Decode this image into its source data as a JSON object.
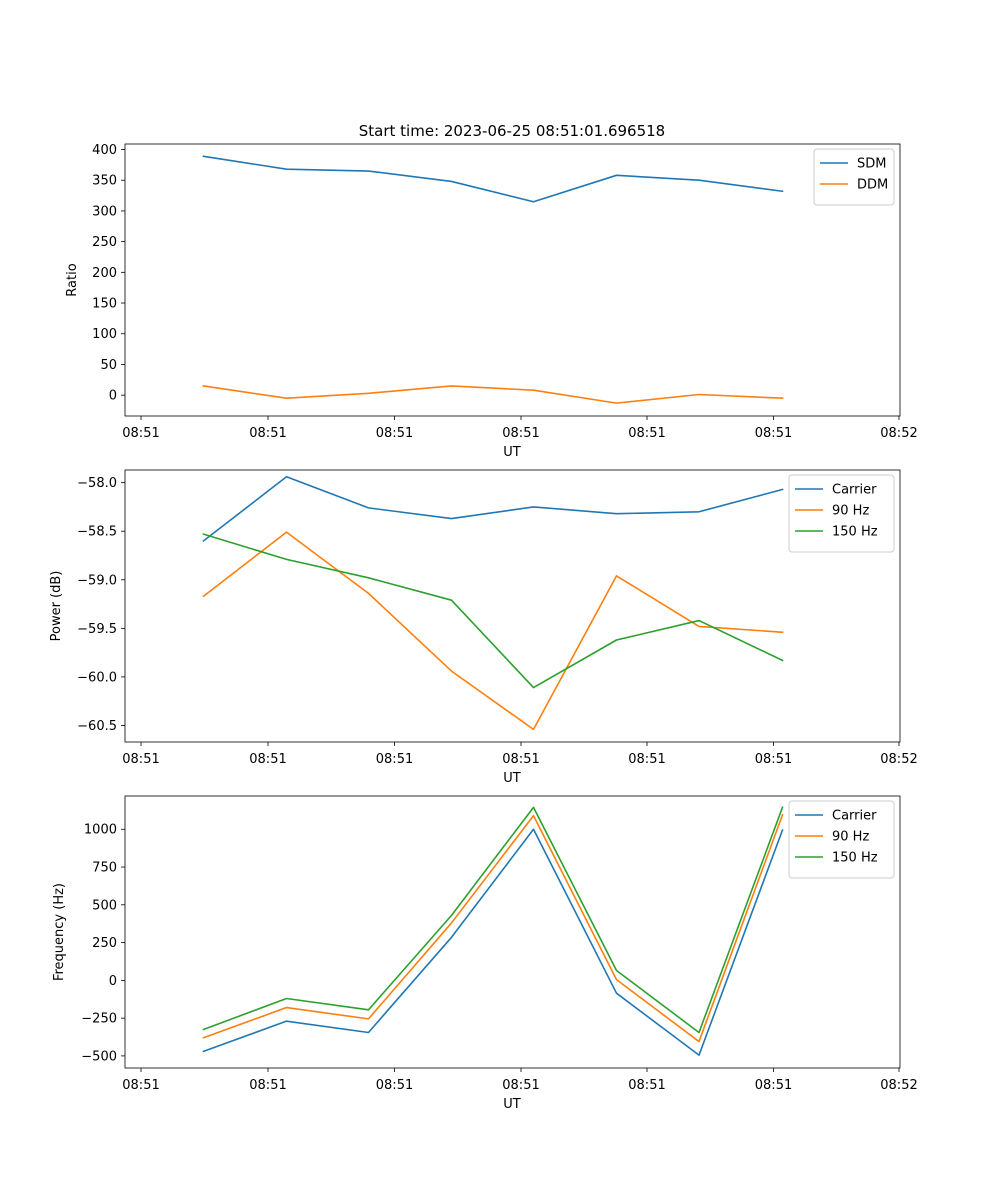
{
  "figure": {
    "title": "Start time: 2023-06-25 08:51:01.696518"
  },
  "chart_data": [
    {
      "type": "line",
      "xlabel": "UT",
      "ylabel": "Ratio",
      "x_tick_labels": [
        "08:51",
        "08:51",
        "08:51",
        "08:51",
        "08:51",
        "08:51",
        "08:51"
      ],
      "x_last_tick_label": "08:52",
      "y_ticks": [
        0,
        50,
        100,
        150,
        200,
        250,
        300,
        350,
        400
      ],
      "ylim": [
        -34,
        409
      ],
      "legend_position": "upper right",
      "series": [
        {
          "name": "SDM",
          "color": "#1f77b4",
          "values": [
            389,
            368,
            365,
            348,
            315,
            358,
            350,
            332
          ]
        },
        {
          "name": "DDM",
          "color": "#ff7f0e",
          "values": [
            15,
            -5,
            3,
            15,
            8,
            -13,
            1,
            -5
          ]
        }
      ]
    },
    {
      "type": "line",
      "xlabel": "UT",
      "ylabel": "Power (dB)",
      "x_tick_labels": [
        "08:51",
        "08:51",
        "08:51",
        "08:51",
        "08:51",
        "08:51",
        "08:51"
      ],
      "x_last_tick_label": "08:52",
      "y_ticks": [
        -60.5,
        -60.0,
        -59.5,
        -59.0,
        -58.5,
        -58.0
      ],
      "y_tick_labels": [
        "−60.5",
        "−60.0",
        "−59.5",
        "−59.0",
        "−58.5",
        "−58.0"
      ],
      "ylim": [
        -60.67,
        -57.87
      ],
      "legend_position": "upper right",
      "series": [
        {
          "name": "Carrier",
          "color": "#1f77b4",
          "values": [
            -58.6,
            -57.94,
            -58.26,
            -58.37,
            -58.25,
            -58.32,
            -58.3,
            -58.07
          ]
        },
        {
          "name": "90 Hz",
          "color": "#ff7f0e",
          "values": [
            -59.17,
            -58.51,
            -59.14,
            -59.94,
            -60.54,
            -58.96,
            -59.48,
            -59.54
          ]
        },
        {
          "name": "150 Hz",
          "color": "#2ca02c",
          "values": [
            -58.53,
            -58.79,
            -58.98,
            -59.21,
            -60.11,
            -59.62,
            -59.42,
            -59.83
          ]
        }
      ]
    },
    {
      "type": "line",
      "xlabel": "UT",
      "ylabel": "Frequency (Hz)",
      "x_tick_labels": [
        "08:51",
        "08:51",
        "08:51",
        "08:51",
        "08:51",
        "08:51",
        "08:51"
      ],
      "x_last_tick_label": "08:52",
      "y_ticks": [
        -500,
        -250,
        0,
        250,
        500,
        750,
        1000
      ],
      "y_tick_labels": [
        "−500",
        "−250",
        "0",
        "250",
        "500",
        "750",
        "1000"
      ],
      "ylim": [
        -580,
        1220
      ],
      "legend_position": "upper right",
      "series": [
        {
          "name": "Carrier",
          "color": "#1f77b4",
          "values": [
            -470,
            -270,
            -345,
            285,
            1000,
            -85,
            -495,
            995
          ]
        },
        {
          "name": "90 Hz",
          "color": "#ff7f0e",
          "values": [
            -380,
            -180,
            -255,
            380,
            1090,
            5,
            -405,
            1095
          ]
        },
        {
          "name": "150 Hz",
          "color": "#2ca02c",
          "values": [
            -325,
            -120,
            -195,
            430,
            1145,
            65,
            -345,
            1145
          ]
        }
      ]
    }
  ]
}
